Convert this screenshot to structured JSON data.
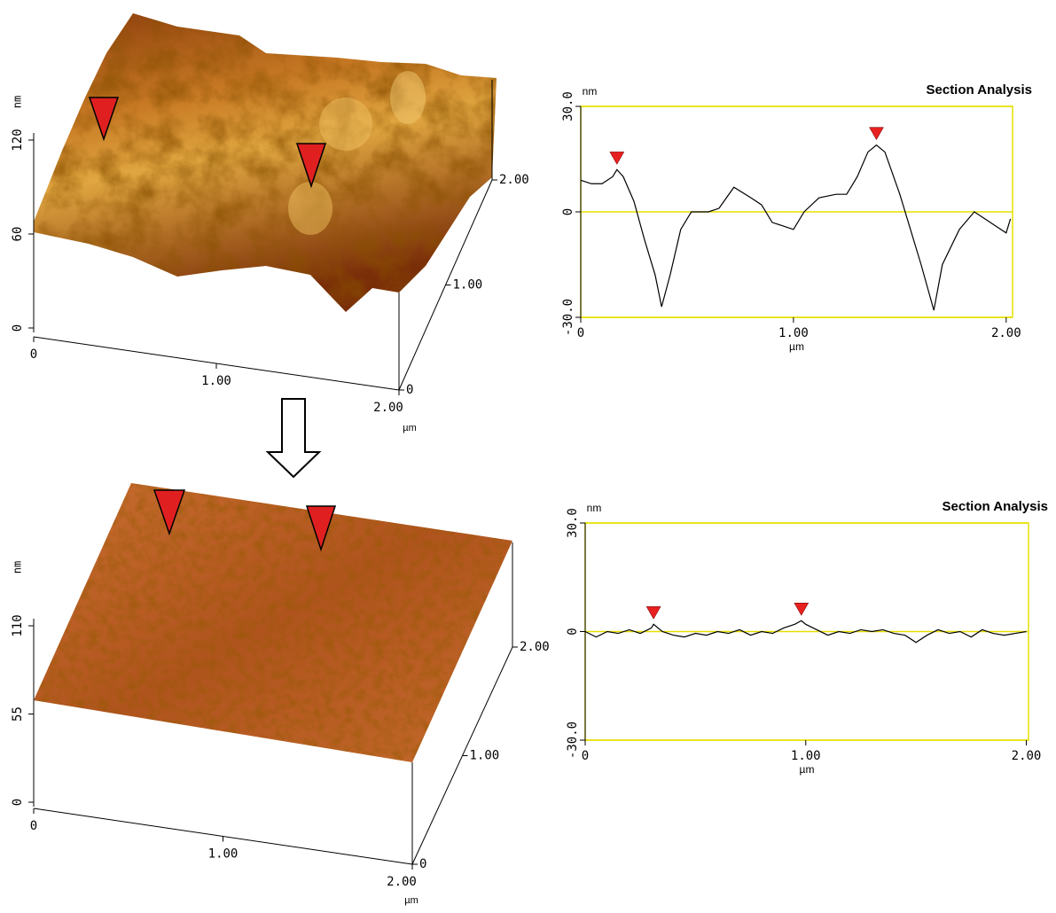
{
  "chart_data": [
    {
      "type": "surface3d",
      "zlabel": "nm",
      "xlabel": "µm",
      "zlim": [
        0,
        120
      ],
      "zticks": [
        0,
        60,
        120
      ],
      "xlim": [
        0,
        2
      ],
      "xticks": [
        0,
        {
          "value": 1,
          "label": "1.00"
        },
        {
          "value": 2,
          "label": "2.00"
        }
      ],
      "ylim": [
        0,
        2
      ],
      "yticks": [
        0,
        {
          "value": 1,
          "label": "1.00"
        },
        {
          "value": 2,
          "label": "2.00"
        }
      ]
    },
    {
      "type": "surface3d",
      "zlabel": "nm",
      "xlabel": "µm",
      "zlim": [
        0,
        110
      ],
      "zticks": [
        0,
        55,
        110
      ],
      "xlim": [
        0,
        2
      ],
      "xticks": [
        0,
        {
          "value": 1,
          "label": "1.00"
        },
        {
          "value": 2,
          "label": "2.00"
        }
      ],
      "ylim": [
        0,
        2
      ],
      "yticks": [
        0,
        {
          "value": 1,
          "label": "1.00"
        },
        {
          "value": 2,
          "label": "2.00"
        }
      ]
    },
    {
      "type": "line",
      "title": "Section Analysis",
      "ylabel": "nm",
      "xlabel": "µm",
      "xlim": [
        0,
        2.03
      ],
      "xticks": [
        0,
        {
          "value": 1,
          "label": "1.00"
        },
        {
          "value": 2,
          "label": "2.00"
        }
      ],
      "ylim": [
        -30,
        30
      ],
      "yticks": [
        {
          "value": 30,
          "label": "30.0"
        },
        0,
        {
          "value": -30,
          "label": "-30.0"
        }
      ],
      "grid": true,
      "grid_color": "#e6e000",
      "color": "#000000",
      "x": [
        0,
        0.05,
        0.1,
        0.15,
        0.17,
        0.2,
        0.25,
        0.3,
        0.35,
        0.38,
        0.42,
        0.47,
        0.52,
        0.6,
        0.65,
        0.72,
        0.8,
        0.85,
        0.9,
        0.95,
        1.0,
        1.05,
        1.12,
        1.2,
        1.25,
        1.3,
        1.35,
        1.39,
        1.43,
        1.5,
        1.55,
        1.6,
        1.66,
        1.7,
        1.78,
        1.85,
        1.9,
        1.95,
        2.0,
        2.02
      ],
      "values": [
        9,
        8,
        8,
        10,
        12,
        10,
        3,
        -8,
        -18,
        -27,
        -18,
        -5,
        0,
        0,
        1,
        7,
        4,
        2,
        -3,
        -4,
        -5,
        0,
        4,
        5,
        5,
        10,
        17,
        19,
        17,
        5,
        -5,
        -15,
        -28,
        -15,
        -5,
        0,
        -2,
        -4,
        -6,
        -2
      ],
      "marker_color": "#e82020",
      "markers_x": [
        0.17,
        1.39
      ],
      "markers_y": [
        12,
        19
      ]
    },
    {
      "type": "line",
      "title": "Section Analysis",
      "ylabel": "nm",
      "xlabel": "µm",
      "xlim": [
        0,
        2.01
      ],
      "xticks": [
        0,
        {
          "value": 1,
          "label": "1.00"
        },
        {
          "value": 2,
          "label": "2.00"
        }
      ],
      "ylim": [
        -30,
        30
      ],
      "yticks": [
        {
          "value": 30,
          "label": "30.0"
        },
        0,
        {
          "value": -30,
          "label": "-30.0"
        }
      ],
      "grid": true,
      "grid_color": "#e6e000",
      "color": "#000000",
      "x": [
        0,
        0.05,
        0.1,
        0.15,
        0.2,
        0.25,
        0.3,
        0.31,
        0.35,
        0.4,
        0.45,
        0.5,
        0.55,
        0.6,
        0.65,
        0.7,
        0.75,
        0.8,
        0.85,
        0.9,
        0.95,
        0.98,
        1.0,
        1.05,
        1.1,
        1.15,
        1.2,
        1.25,
        1.3,
        1.35,
        1.4,
        1.45,
        1.5,
        1.55,
        1.6,
        1.65,
        1.7,
        1.75,
        1.8,
        1.85,
        1.9,
        1.95,
        2.0
      ],
      "values": [
        0,
        -1.5,
        0,
        -0.5,
        0.5,
        -0.5,
        1,
        2,
        0,
        -1,
        -1.5,
        -0.5,
        -1,
        0,
        -0.5,
        0.5,
        -1,
        0,
        -0.5,
        1,
        2,
        3,
        2,
        0.5,
        -1,
        0,
        -0.5,
        0.5,
        0,
        0.5,
        -0.5,
        -1,
        -3,
        -1,
        0.5,
        -0.5,
        0,
        -1.5,
        0.5,
        -0.5,
        -1,
        -0.5,
        0
      ],
      "marker_color": "#e82020",
      "markers_x": [
        0.31,
        0.98
      ],
      "markers_y": [
        2,
        3
      ]
    }
  ]
}
